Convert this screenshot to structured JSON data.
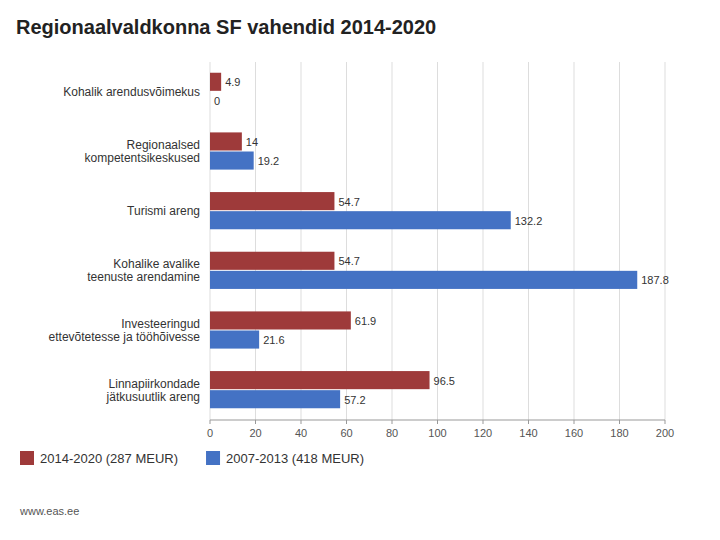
{
  "chart_data": {
    "type": "bar",
    "orientation": "horizontal",
    "title": "Regionaalvaldkonna SF vahendid 2014-2020",
    "categories": [
      "Kohalik arendusvõimekus",
      "Regionaalsed\nkompetentsikeskused",
      "Turismi areng",
      "Kohalike avalike\nteenuste arendamine",
      "Investeeringud\nettevõtetesse ja tööhõivesse",
      "Linnapiirkondade\njätkusuutlik areng"
    ],
    "series": [
      {
        "name": "2014-2020 (287 MEUR)",
        "color": "#9E3A3A",
        "values": [
          4.9,
          14,
          54.7,
          54.7,
          61.9,
          96.5
        ]
      },
      {
        "name": "2007-2013 (418 MEUR)",
        "color": "#4472C4",
        "values": [
          0,
          19.2,
          132.2,
          187.8,
          21.6,
          57.2
        ]
      }
    ],
    "xlim": [
      0,
      200
    ],
    "xticks": [
      0,
      20,
      40,
      60,
      80,
      100,
      120,
      140,
      160,
      180,
      200
    ],
    "grid": true,
    "legend": "lower left",
    "data_labels": true,
    "annotations": [
      "www.eas.ee"
    ]
  }
}
